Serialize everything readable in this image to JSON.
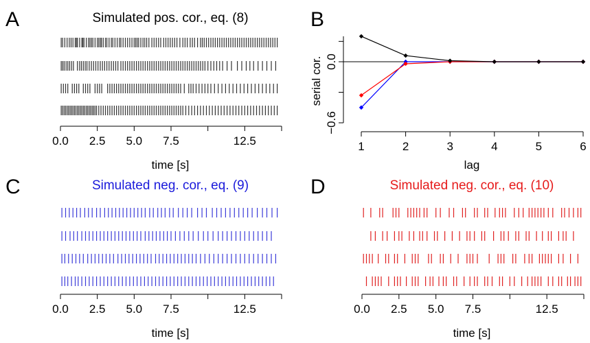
{
  "panels": {
    "A": {
      "letter": "A",
      "title": "Simulated pos. cor., eq. (8)",
      "title_color": "#000000",
      "spike_color": "#333333"
    },
    "B": {
      "letter": "B"
    },
    "C": {
      "letter": "C",
      "title": "Simulated neg. cor., eq. (9)",
      "title_color": "#1a1adb",
      "spike_color": "#3b3bd9"
    },
    "D": {
      "letter": "D",
      "title": "Simulated neg. cor., eq. (10)",
      "title_color": "#e61a1a",
      "spike_color": "#e02020"
    }
  },
  "chart_data": [
    {
      "panel": "A",
      "type": "raster",
      "xlabel": "time [s]",
      "xticks": [
        "0.0",
        "2.5",
        "5.0",
        "7.5",
        "12.5"
      ],
      "xtick_values": [
        0.0,
        2.5,
        5.0,
        7.5,
        12.5
      ],
      "xlim": [
        0,
        15
      ],
      "trains": [
        [
          0.05,
          0.15,
          0.3,
          0.45,
          0.6,
          0.72,
          0.85,
          1.0,
          1.08,
          1.15,
          1.3,
          1.45,
          1.52,
          1.6,
          1.75,
          1.9,
          2.0,
          2.1,
          2.2,
          2.35,
          2.5,
          2.6,
          2.7,
          2.78,
          2.9,
          3.05,
          3.15,
          3.3,
          3.45,
          3.55,
          3.7,
          3.85,
          4.0,
          4.1,
          4.25,
          4.4,
          4.55,
          4.7,
          4.85,
          5.0,
          5.1,
          5.2,
          5.3,
          5.45,
          5.6,
          5.72,
          5.85,
          6.0,
          6.2,
          6.35,
          6.5,
          6.65,
          6.8,
          7.0,
          7.15,
          7.3,
          7.45,
          7.6,
          7.75,
          7.9,
          8.1,
          8.3,
          8.45,
          8.6,
          8.8,
          8.95,
          9.1,
          9.3,
          9.5,
          9.62,
          9.75,
          9.9,
          10.05,
          10.2,
          10.35,
          10.5,
          10.65,
          10.8,
          10.95,
          11.1,
          11.25,
          11.4,
          11.55,
          11.7,
          11.85,
          12.0,
          12.15,
          12.3,
          12.45,
          12.6,
          12.75,
          12.9,
          13.05,
          13.2,
          13.35,
          13.5,
          13.65,
          13.8,
          13.95,
          14.1,
          14.25,
          14.4,
          14.55,
          14.7
        ],
        [
          0.05,
          0.15,
          0.25,
          0.38,
          0.5,
          0.62,
          0.75,
          0.88,
          1.15,
          1.3,
          1.42,
          1.55,
          1.68,
          1.8,
          1.95,
          2.1,
          2.25,
          2.4,
          2.55,
          2.7,
          2.85,
          3.0,
          3.15,
          3.3,
          3.45,
          3.6,
          3.75,
          3.9,
          4.1,
          4.25,
          4.4,
          4.55,
          4.7,
          4.85,
          5.0,
          5.15,
          5.3,
          5.45,
          5.6,
          5.75,
          5.9,
          6.05,
          6.2,
          6.35,
          6.5,
          6.65,
          6.8,
          6.95,
          7.1,
          7.25,
          7.4,
          7.55,
          7.7,
          7.85,
          8.0,
          8.15,
          8.3,
          8.45,
          8.6,
          8.75,
          8.9,
          9.05,
          9.2,
          9.35,
          9.5,
          9.65,
          9.8,
          10.0,
          10.2,
          10.4,
          10.6,
          10.8,
          11.0,
          11.3,
          11.6,
          12.0,
          12.3,
          12.6,
          12.85,
          13.1,
          13.4,
          13.7,
          14.0,
          14.3,
          14.6
        ],
        [
          0.05,
          0.2,
          0.35,
          0.5,
          0.8,
          0.95,
          1.1,
          1.25,
          1.55,
          1.7,
          1.85,
          2.0,
          2.35,
          2.5,
          2.65,
          2.8,
          3.2,
          3.35,
          3.5,
          3.65,
          3.8,
          3.95,
          4.1,
          4.25,
          4.4,
          4.55,
          4.7,
          4.85,
          5.0,
          5.15,
          5.3,
          5.45,
          5.6,
          5.75,
          5.9,
          6.05,
          6.2,
          6.35,
          6.5,
          6.65,
          6.8,
          6.95,
          7.1,
          7.25,
          7.4,
          7.55,
          7.7,
          7.85,
          8.0,
          8.15,
          8.4,
          8.7,
          8.85,
          9.0,
          9.2,
          9.4,
          9.6,
          9.8,
          10.0,
          10.2,
          10.45,
          10.7,
          10.95,
          11.2,
          11.45,
          11.7,
          11.95,
          12.2,
          12.45,
          12.7,
          12.95,
          13.2,
          13.45,
          13.7,
          13.95,
          14.2,
          14.45,
          14.7
        ],
        [
          0.05,
          0.15,
          0.25,
          0.35,
          0.45,
          0.55,
          0.65,
          0.75,
          0.85,
          0.95,
          1.05,
          1.15,
          1.25,
          1.35,
          1.45,
          1.55,
          1.65,
          1.75,
          1.85,
          1.95,
          2.05,
          2.15,
          2.25,
          2.35,
          2.45,
          2.6,
          2.75,
          2.9,
          3.05,
          3.2,
          3.35,
          3.5,
          3.65,
          3.8,
          3.95,
          4.1,
          4.25,
          4.4,
          4.55,
          4.7,
          4.85,
          5.0,
          5.15,
          5.3,
          5.45,
          5.6,
          5.75,
          5.9,
          6.05,
          6.2,
          6.35,
          6.5,
          6.65,
          6.8,
          6.95,
          7.1,
          7.25,
          7.4,
          7.55,
          7.7,
          7.85,
          8.0,
          8.15,
          8.3,
          8.5,
          8.7,
          8.9,
          9.1,
          9.3,
          9.5,
          9.7,
          9.9,
          10.1,
          10.3,
          10.5,
          10.7,
          10.9,
          11.1,
          11.3,
          11.5,
          11.7,
          11.9,
          12.1,
          12.3,
          12.5,
          12.7,
          12.9,
          13.1,
          13.3,
          13.5,
          13.7,
          13.9,
          14.1,
          14.3,
          14.5,
          14.7
        ]
      ]
    },
    {
      "panel": "B",
      "type": "line",
      "xlabel": "lag",
      "ylabel": "serial cor.",
      "x": [
        1,
        2,
        3,
        4,
        5,
        6
      ],
      "xlim": [
        1,
        6
      ],
      "ylim": [
        -0.6,
        0.25
      ],
      "yticks": [
        "−0.6",
        "0.0"
      ],
      "ytick_values": [
        -0.6,
        0.0
      ],
      "zero_line": true,
      "series": [
        {
          "color": "#000000",
          "values": [
            0.25,
            0.06,
            0.01,
            0.0,
            0.0,
            0.0
          ]
        },
        {
          "color": "#0000ff",
          "values": [
            -0.45,
            0.0,
            0.0,
            0.0,
            0.0,
            0.0
          ]
        },
        {
          "color": "#ff0000",
          "values": [
            -0.33,
            -0.02,
            0.0,
            0.0,
            0.0,
            0.0
          ]
        }
      ]
    },
    {
      "panel": "C",
      "type": "raster",
      "xlabel": "time [s]",
      "xticks": [
        "0.0",
        "2.5",
        "5.0",
        "7.5",
        "12.5"
      ],
      "xtick_values": [
        0.0,
        2.5,
        5.0,
        7.5,
        12.5
      ],
      "xlim": [
        0,
        15
      ],
      "trains": [
        [
          0.1,
          0.35,
          0.6,
          0.85,
          1.1,
          1.35,
          1.65,
          1.9,
          2.15,
          2.45,
          2.7,
          3.0,
          3.25,
          3.5,
          3.75,
          4.0,
          4.25,
          4.5,
          4.75,
          5.0,
          5.25,
          5.5,
          5.75,
          6.05,
          6.3,
          6.6,
          6.85,
          7.1,
          7.4,
          7.65,
          8.0,
          8.3,
          8.6,
          8.9,
          9.3,
          9.6,
          9.9,
          10.3,
          10.6,
          10.9,
          11.2,
          11.5,
          11.8,
          12.1,
          12.4,
          12.7,
          13.0,
          13.35,
          13.7,
          14.0,
          14.35,
          14.7
        ],
        [
          0.1,
          0.35,
          0.65,
          0.9,
          1.15,
          1.45,
          1.7,
          1.95,
          2.2,
          2.45,
          2.7,
          2.95,
          3.2,
          3.45,
          3.7,
          3.95,
          4.2,
          4.45,
          4.7,
          4.95,
          5.2,
          5.45,
          5.75,
          6.0,
          6.25,
          6.5,
          6.75,
          7.0,
          7.25,
          7.5,
          7.8,
          8.1,
          8.4,
          8.7,
          9.0,
          9.35,
          9.7,
          10.0,
          10.35,
          10.7,
          11.0,
          11.3,
          11.6,
          11.9,
          12.2,
          12.5,
          12.8,
          13.1,
          13.4,
          13.7,
          14.0,
          14.3
        ],
        [
          0.1,
          0.3,
          0.55,
          0.8,
          1.05,
          1.3,
          1.55,
          1.85,
          2.1,
          2.35,
          2.6,
          2.85,
          3.1,
          3.35,
          3.6,
          3.9,
          4.15,
          4.4,
          4.65,
          4.9,
          5.15,
          5.4,
          5.65,
          5.9,
          6.15,
          6.45,
          6.7,
          6.95,
          7.2,
          7.45,
          7.7,
          7.95,
          8.2,
          8.45,
          8.7,
          8.95,
          9.2,
          9.5,
          9.8,
          10.1,
          10.4,
          10.7,
          11.0,
          11.3,
          11.6,
          11.9,
          12.2,
          12.5,
          12.8,
          13.1,
          13.4,
          13.7,
          14.0,
          14.3,
          14.6
        ],
        [
          0.1,
          0.3,
          0.5,
          0.75,
          1.0,
          1.2,
          1.45,
          1.7,
          1.95,
          2.2,
          2.45,
          2.7,
          2.95,
          3.2,
          3.45,
          3.7,
          3.95,
          4.2,
          4.45,
          4.7,
          4.95,
          5.2,
          5.45,
          5.7,
          5.95,
          6.2,
          6.45,
          6.7,
          6.95,
          7.2,
          7.45,
          7.7,
          7.95,
          8.2,
          8.45,
          8.7,
          8.95,
          9.2,
          9.45,
          9.7,
          9.95,
          10.2,
          10.45,
          10.7,
          10.95,
          11.2,
          11.45,
          11.7,
          11.95,
          12.2,
          12.45,
          12.7,
          12.95,
          13.2,
          13.45,
          13.7,
          13.95,
          14.2,
          14.45
        ]
      ]
    },
    {
      "panel": "D",
      "type": "raster",
      "xlabel": "time [s]",
      "xticks": [
        "0.0",
        "2.5",
        "5.0",
        "7.5",
        "12.5"
      ],
      "xtick_values": [
        0.0,
        2.5,
        5.0,
        7.5,
        12.5
      ],
      "xlim": [
        0,
        15
      ],
      "trains": [
        [
          0.1,
          0.6,
          1.2,
          1.4,
          2.1,
          2.3,
          2.5,
          3.1,
          3.3,
          3.5,
          3.7,
          3.9,
          4.2,
          4.4,
          5.0,
          5.3,
          5.9,
          6.2,
          6.8,
          7.0,
          7.6,
          7.8,
          8.3,
          8.5,
          9.0,
          9.3,
          9.5,
          9.7,
          10.3,
          10.6,
          10.9,
          11.3,
          11.5,
          11.7,
          11.9,
          12.1,
          12.3,
          12.6,
          12.9,
          13.5,
          13.7,
          14.0,
          14.3,
          14.6,
          14.8
        ],
        [
          0.6,
          0.9,
          1.4,
          1.7,
          2.2,
          2.5,
          2.7,
          3.2,
          3.5,
          3.9,
          4.1,
          4.4,
          4.9,
          5.1,
          5.6,
          6.1,
          6.6,
          7.1,
          7.3,
          7.6,
          8.1,
          8.3,
          8.9,
          9.4,
          9.6,
          9.9,
          10.4,
          10.6,
          11.1,
          11.3,
          11.8,
          12.2,
          12.6,
          12.8,
          13.3,
          13.6,
          13.8,
          14.3
        ],
        [
          0.1,
          0.3,
          0.5,
          0.7,
          1.1,
          1.6,
          1.8,
          2.2,
          2.4,
          2.9,
          3.4,
          3.6,
          3.8,
          4.5,
          4.7,
          5.3,
          5.5,
          6.0,
          6.5,
          7.1,
          7.3,
          7.5,
          7.8,
          8.6,
          9.2,
          9.4,
          9.6,
          10.2,
          10.4,
          11.0,
          11.3,
          11.5,
          12.0,
          12.2,
          12.4,
          12.6,
          12.8,
          13.3,
          13.6,
          14.1,
          14.6
        ],
        [
          0.3,
          0.7,
          0.9,
          1.1,
          1.3,
          1.8,
          2.2,
          2.4,
          2.6,
          3.0,
          3.4,
          3.6,
          3.8,
          4.3,
          4.6,
          4.8,
          5.2,
          5.5,
          5.7,
          6.2,
          6.4,
          6.9,
          7.3,
          7.6,
          7.8,
          8.3,
          8.5,
          8.8,
          9.3,
          9.5,
          10.0,
          10.3,
          10.8,
          11.2,
          11.5,
          11.7,
          11.9,
          12.1,
          12.6,
          12.9,
          13.3,
          13.5,
          13.9,
          14.1,
          14.4,
          14.6,
          14.8
        ]
      ]
    }
  ]
}
